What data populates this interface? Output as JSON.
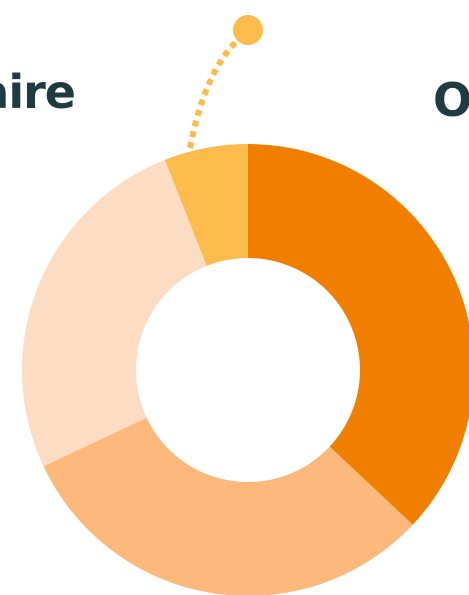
{
  "chart_data": {
    "type": "donut",
    "annotations": [
      "aire",
      "O"
    ],
    "values": [
      37,
      31,
      26,
      6
    ],
    "colors": [
      "#f07f00",
      "#fdb97c",
      "#fddcc4",
      "#fcbb4a"
    ]
  }
}
